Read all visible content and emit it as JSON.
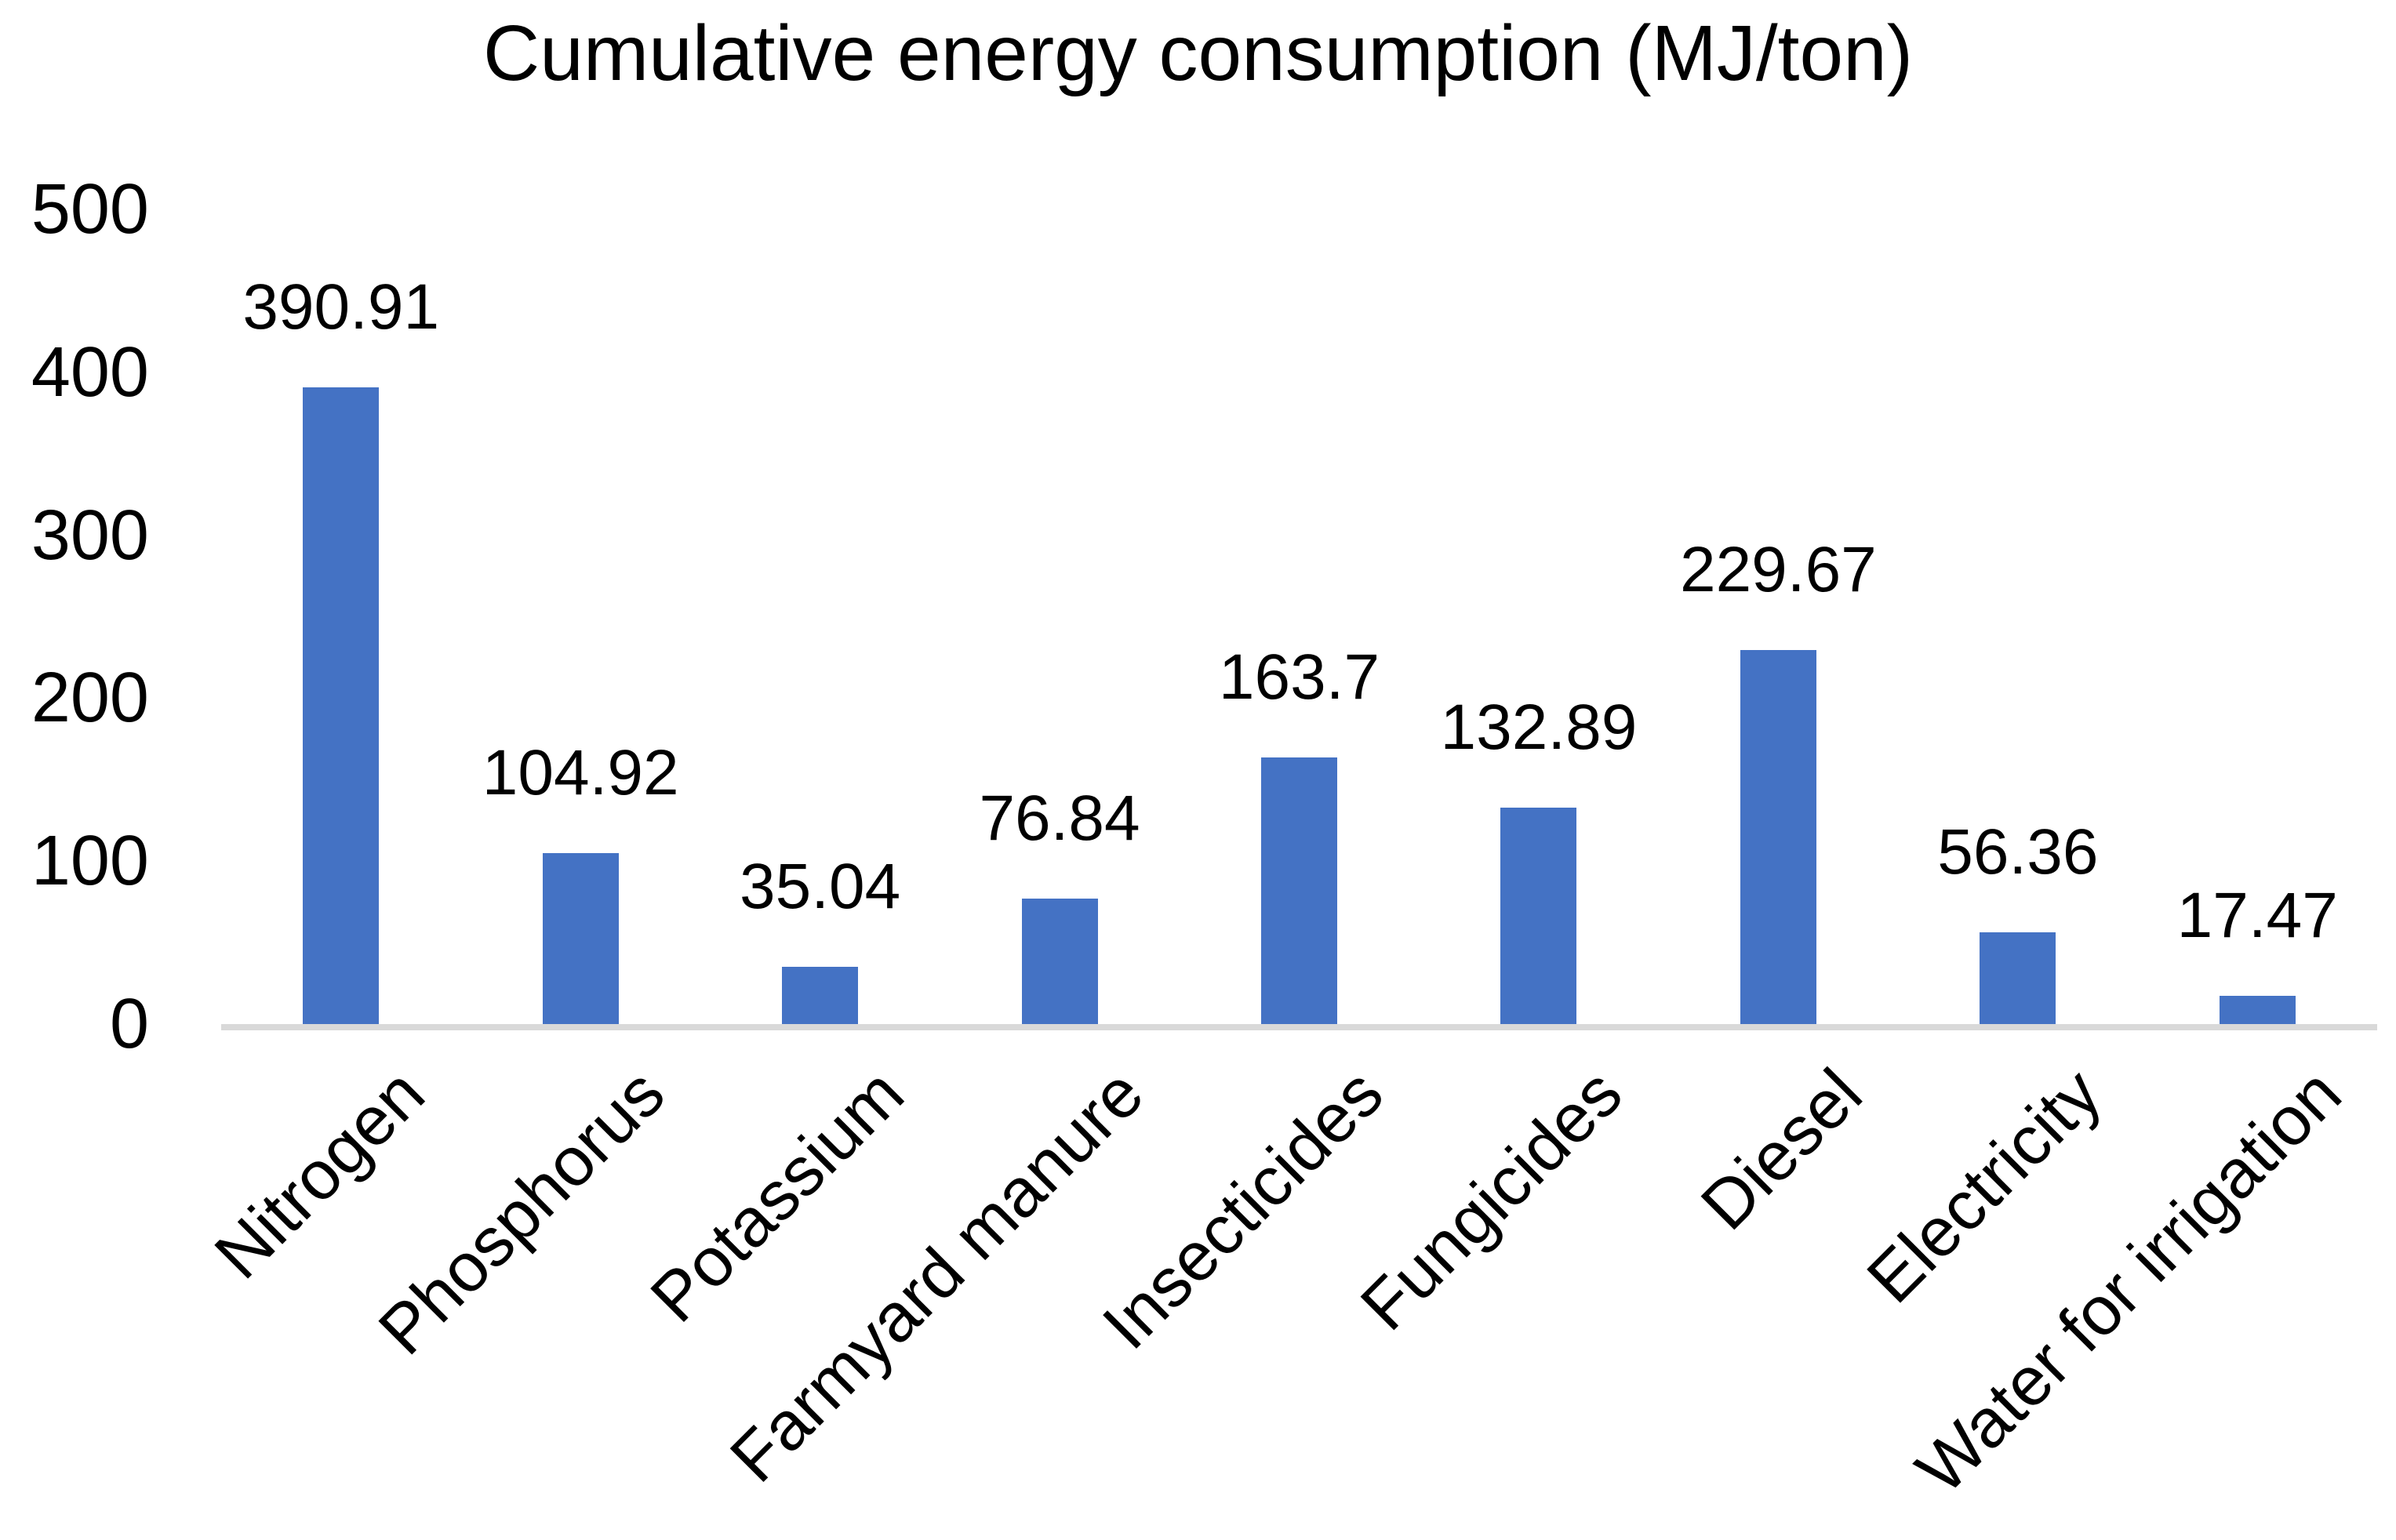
{
  "chart_data": {
    "type": "bar",
    "title": "Cumulative energy consumption (MJ/ton)",
    "categories": [
      "Nitrogen",
      "Phosphorus",
      "Potassium",
      "Farmyard manure",
      "Insecticides",
      "Fungicides",
      "Diesel",
      "Electricity",
      "Water for irrigation"
    ],
    "values": [
      390.91,
      104.92,
      35.04,
      76.84,
      163.7,
      132.89,
      229.67,
      56.36,
      17.47
    ],
    "data_labels": [
      "390.91",
      "104.92",
      "35.04",
      "76.84",
      "163.7",
      "132.89",
      "229.67",
      "56.36",
      "17.47"
    ],
    "yticks": [
      0,
      100,
      200,
      300,
      400,
      500
    ],
    "ylim": [
      0,
      500
    ],
    "xlabel": "",
    "ylabel": "",
    "grid": "off",
    "legend": "none",
    "bar_color": "#4472C4",
    "axis_line_color": "#D9D9D9",
    "text_color": "#000000"
  }
}
